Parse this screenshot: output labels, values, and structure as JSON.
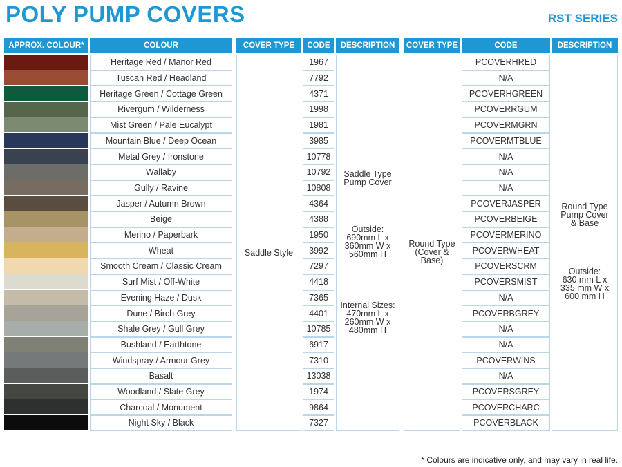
{
  "title": "POLY PUMP COVERS",
  "series": "RST SERIES",
  "footnote": "* Colours are indicative only, and may vary in real life.",
  "left_table": {
    "headers": {
      "approx_colour": "APPROX. COLOUR*",
      "colour": "COLOUR",
      "cover_type": "COVER TYPE",
      "code": "CODE",
      "description": "DESCRIPTION"
    },
    "cover_type": "Saddle Style",
    "description": {
      "type": "Saddle Type\nPump Cover",
      "outside": "Outside:\n690mm L x\n360mm W x\n560mm H",
      "internal": "Internal Sizes:\n470mm L x\n260mm W x\n480mm H"
    }
  },
  "right_table": {
    "headers": {
      "cover_type": "COVER TYPE",
      "code": "CODE",
      "description": "DESCRIPTION"
    },
    "cover_type": "Round Type\n(Cover &\nBase)",
    "description": {
      "type": "Round Type\nPump Cover\n& Base",
      "outside": "Outside:\n630 mm L x\n335 mm W x\n600 mm H"
    }
  },
  "rows": [
    {
      "swatch": "#6b1a12",
      "colour": "Heritage Red / Manor Red",
      "code": "1967",
      "round_code": "PCOVERHRED"
    },
    {
      "swatch": "#9b4b34",
      "colour": "Tuscan Red / Headland",
      "code": "7792",
      "round_code": "N/A"
    },
    {
      "swatch": "#0f5a3c",
      "colour": "Heritage Green / Cottage Green",
      "code": "4371",
      "round_code": "PCOVERHGREEN"
    },
    {
      "swatch": "#56664a",
      "colour": "Rivergum / Wilderness",
      "code": "1998",
      "round_code": "PCOVERRGUM"
    },
    {
      "swatch": "#7b8a70",
      "colour": "Mist Green / Pale Eucalypt",
      "code": "1981",
      "round_code": "PCOVERMGRN"
    },
    {
      "swatch": "#27385a",
      "colour": "Mountain Blue / Deep Ocean",
      "code": "3985",
      "round_code": "PCOVERMTBLUE"
    },
    {
      "swatch": "#3a4150",
      "colour": "Metal Grey / Ironstone",
      "code": "10778",
      "round_code": "N/A"
    },
    {
      "swatch": "#6c6c68",
      "colour": "Wallaby",
      "code": "10792",
      "round_code": "N/A"
    },
    {
      "swatch": "#766c61",
      "colour": "Gully / Ravine",
      "code": "10808",
      "round_code": "N/A"
    },
    {
      "swatch": "#5a4d40",
      "colour": "Jasper / Autumn Brown",
      "code": "4364",
      "round_code": "PCOVERJASPER"
    },
    {
      "swatch": "#a69467",
      "colour": "Beige",
      "code": "4388",
      "round_code": "PCOVERBEIGE"
    },
    {
      "swatch": "#c3ad8c",
      "colour": "Merino / Paperbark",
      "code": "1950",
      "round_code": "PCOVERMERINO"
    },
    {
      "swatch": "#d7b45d",
      "colour": "Wheat",
      "code": "3992",
      "round_code": "PCOVERWHEAT"
    },
    {
      "swatch": "#f0d9ae",
      "colour": "Smooth Cream / Classic Cream",
      "code": "7297",
      "round_code": "PCOVERSCRM"
    },
    {
      "swatch": "#dddbd0",
      "colour": "Surf Mist / Off-White",
      "code": "4418",
      "round_code": "PCOVERSMIST"
    },
    {
      "swatch": "#c4bca8",
      "colour": "Evening Haze / Dusk",
      "code": "7365",
      "round_code": "N/A"
    },
    {
      "swatch": "#a8a398",
      "colour": "Dune / Birch Grey",
      "code": "4401",
      "round_code": "PCOVERBGREY"
    },
    {
      "swatch": "#a7ada9",
      "colour": "Shale Grey / Gull Grey",
      "code": "10785",
      "round_code": "N/A"
    },
    {
      "swatch": "#7f8174",
      "colour": "Bushland / Earthtone",
      "code": "6917",
      "round_code": "N/A"
    },
    {
      "swatch": "#76797a",
      "colour": "Windspray / Armour Grey",
      "code": "7310",
      "round_code": "PCOVERWINS"
    },
    {
      "swatch": "#5b5d5c",
      "colour": "Basalt",
      "code": "13038",
      "round_code": "N/A"
    },
    {
      "swatch": "#444741",
      "colour": "Woodland / Slate Grey",
      "code": "1974",
      "round_code": "PCOVERSGREY"
    },
    {
      "swatch": "#2e3030",
      "colour": "Charcoal / Monument",
      "code": "9864",
      "round_code": "PCOVERCHARC"
    },
    {
      "swatch": "#0c0c0c",
      "colour": "Night Sky / Black",
      "code": "7327",
      "round_code": "PCOVERBLACK"
    }
  ]
}
